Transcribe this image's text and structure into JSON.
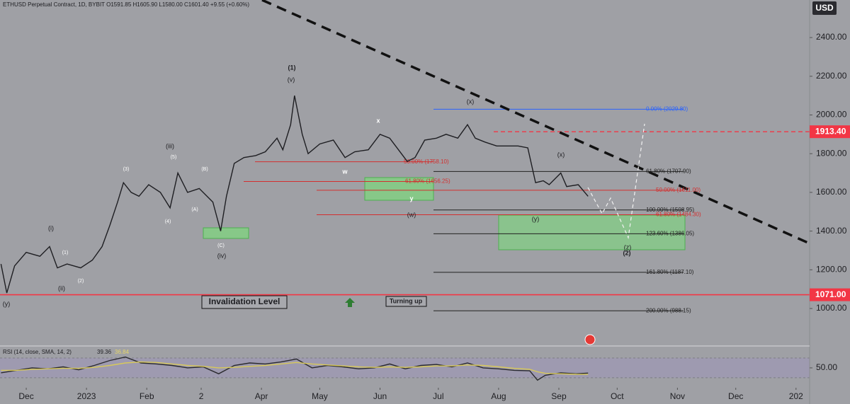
{
  "chart_data": [
    {
      "type": "line",
      "title": "ETHUSD Perpetual Contract, 1D, BYBIT  O1591.85  H1605.90  L1580.00  C1601.40  +9.55 (+0.60%)",
      "currency": "USD",
      "x": [
        -13,
        -10,
        -6,
        0,
        7,
        12,
        16,
        21,
        28,
        34,
        39,
        43,
        47,
        50,
        54,
        58,
        63,
        69,
        74,
        78,
        83,
        89,
        96,
        100,
        103,
        107,
        112,
        118,
        123,
        129,
        132,
        136,
        138,
        142,
        145,
        151,
        158,
        164,
        169,
        176,
        182,
        187,
        193,
        196,
        200,
        205,
        211,
        216,
        222,
        227,
        231,
        236,
        242,
        247,
        253,
        258,
        262,
        266,
        269,
        275,
        278,
        284,
        289
      ],
      "series": [
        {
          "color": "#1e1e22",
          "values": [
            1230,
            1080,
            1220,
            1290,
            1270,
            1320,
            1210,
            1230,
            1210,
            1250,
            1320,
            1430,
            1550,
            1650,
            1600,
            1580,
            1640,
            1600,
            1520,
            1700,
            1600,
            1620,
            1550,
            1400,
            1580,
            1750,
            1780,
            1790,
            1810,
            1880,
            1820,
            1950,
            2100,
            1900,
            1800,
            1850,
            1870,
            1780,
            1810,
            1820,
            1900,
            1880,
            1800,
            1760,
            1780,
            1870,
            1880,
            1900,
            1880,
            1950,
            1880,
            1860,
            1840,
            1840,
            1840,
            1830,
            1650,
            1660,
            1640,
            1700,
            1630,
            1640,
            1580
          ]
        }
      ],
      "xlim": [
        -13.5,
        403
      ],
      "xticks": [
        {
          "value": 0,
          "label": "Dec"
        },
        {
          "value": 31,
          "label": "2023"
        },
        {
          "value": 62,
          "label": "Feb"
        },
        {
          "value": 90,
          "label": "2"
        },
        {
          "value": 121,
          "label": "Apr"
        },
        {
          "value": 151,
          "label": "May"
        },
        {
          "value": 182,
          "label": "Jun"
        },
        {
          "value": 212,
          "label": "Jul"
        },
        {
          "value": 243,
          "label": "Aug"
        },
        {
          "value": 274,
          "label": "Sep"
        },
        {
          "value": 304,
          "label": "Oct"
        },
        {
          "value": 335,
          "label": "Nov"
        },
        {
          "value": 365,
          "label": "Dec"
        },
        {
          "value": 396,
          "label": "202"
        }
      ],
      "ylim": [
        810,
        2594
      ],
      "yticks": [
        {
          "value": 1000,
          "label": "1000.00"
        },
        {
          "value": 1200,
          "label": "1200.00"
        },
        {
          "value": 1400,
          "label": "1400.00"
        },
        {
          "value": 1600,
          "label": "1600.00"
        },
        {
          "value": 1800,
          "label": "1800.00"
        },
        {
          "value": 2000,
          "label": "2000.00"
        },
        {
          "value": 2200,
          "label": "2200.00"
        },
        {
          "value": 2400,
          "label": "2400.00"
        }
      ],
      "price_lines": [
        {
          "value": 1913.4,
          "label": "1913.40",
          "color": "#f23645",
          "dashed": true
        },
        {
          "value": 1071,
          "label": "1071.00",
          "color": "#f23645",
          "dashed": false
        }
      ],
      "fib_levels": [
        {
          "value": 2029.8,
          "label": "0.00% (2029.80)",
          "color": "#2962ff"
        },
        {
          "value": 1707.9,
          "label": "61.80% (1707.90)",
          "color": "#222222"
        },
        {
          "value": 1611,
          "label": "50.00% (1611.00)",
          "color": "#d32f2f"
        },
        {
          "value": 1508.95,
          "label": "100.00% (1508.95)",
          "color": "#222222"
        },
        {
          "value": 1484.3,
          "label": "61.80% (1484.30)",
          "color": "#d32f2f"
        },
        {
          "value": 1386.05,
          "label": "123.60% (1386.05)",
          "color": "#222222"
        },
        {
          "value": 1187.1,
          "label": "161.80% (1187.10)",
          "color": "#222222"
        },
        {
          "value": 988.15,
          "label": "200.00% (988.15)",
          "color": "#222222"
        },
        {
          "value": 1758.1,
          "label": "50.00% (1758.10)",
          "color": "#d32f2f"
        },
        {
          "value": 1656.25,
          "label": "61.80% (1656.25)",
          "color": "#d32f2f"
        }
      ],
      "annotations": [
        "(1)",
        "(v)",
        "(iii)",
        "(5)",
        "(3)",
        "(B)",
        "(A)",
        "(4)",
        "(C)",
        "(iv)",
        "(i)",
        "(1)",
        "(2)",
        "(ii)",
        "(y)",
        "x",
        "w",
        "y",
        "(w)",
        "(x)",
        "(x)",
        "(y)",
        "(z)",
        "(2)"
      ],
      "boxes": [
        "Invalidation Level",
        "Turning up"
      ]
    },
    {
      "type": "line",
      "title": "RSI (14, close, SMA, 14, 2)",
      "x": [
        -13,
        -5,
        3,
        11,
        19,
        27,
        35,
        43,
        51,
        59,
        67,
        75,
        83,
        91,
        99,
        107,
        115,
        123,
        131,
        139,
        147,
        155,
        163,
        171,
        179,
        187,
        195,
        203,
        211,
        219,
        227,
        235,
        243,
        251,
        259,
        263,
        267,
        275,
        283,
        289
      ],
      "series": [
        {
          "color": "#2a2a2e",
          "values": [
            40,
            45,
            50,
            48,
            52,
            46,
            55,
            65,
            72,
            60,
            58,
            55,
            50,
            52,
            38,
            55,
            60,
            58,
            62,
            68,
            50,
            55,
            52,
            48,
            50,
            58,
            48,
            55,
            57,
            52,
            60,
            50,
            48,
            45,
            44,
            25,
            35,
            40,
            38,
            39.36
          ]
        },
        {
          "color": "#d8c95a",
          "values": [
            45,
            45,
            47,
            48,
            49,
            49,
            51,
            55,
            60,
            62,
            61,
            58,
            55,
            53,
            50,
            51,
            53,
            55,
            58,
            61,
            58,
            56,
            54,
            52,
            51,
            52,
            51,
            52,
            54,
            54,
            56,
            55,
            52,
            49,
            47,
            42,
            39,
            38,
            37,
            36.84
          ]
        }
      ],
      "xlim": [
        -13.5,
        403
      ],
      "ylim": [
        14,
        93
      ],
      "yticks": [
        {
          "value": 50,
          "label": "50.00"
        }
      ],
      "bands": [
        30,
        70
      ]
    }
  ]
}
